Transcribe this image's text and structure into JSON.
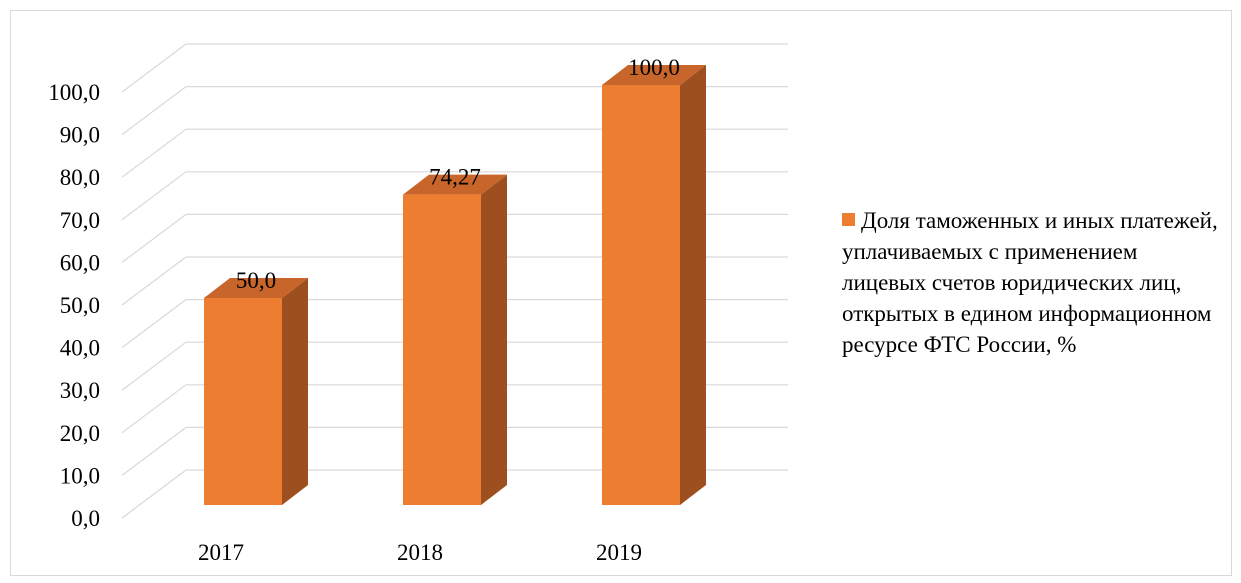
{
  "chart_data": {
    "type": "bar",
    "categories": [
      "2017",
      "2018",
      "2019"
    ],
    "series": [
      {
        "name": "Доля таможенных и иных платежей, уплачиваемых с применением лицевых счетов юридических лиц, открытых в едином информационном ресурсе ФТС России, %",
        "values": [
          50.0,
          74.27,
          100.0
        ],
        "data_labels": [
          "50,0",
          "74,27",
          "100,0"
        ]
      }
    ],
    "ylim": [
      0,
      100
    ],
    "yticks": [
      0,
      10,
      20,
      30,
      40,
      50,
      60,
      70,
      80,
      90,
      100
    ],
    "ytick_labels": [
      "0,0",
      "10,0",
      "20,0",
      "30,0",
      "40,0",
      "50,0",
      "60,0",
      "70,0",
      "80,0",
      "90,0",
      "100,0"
    ],
    "grid": true,
    "style": "3d-column",
    "legend_position": "right",
    "colors": {
      "bar_front": "#ED7D31",
      "bar_side": "#9E4F1F",
      "bar_top": "#C8652A",
      "grid": "#d9d9d9"
    }
  }
}
